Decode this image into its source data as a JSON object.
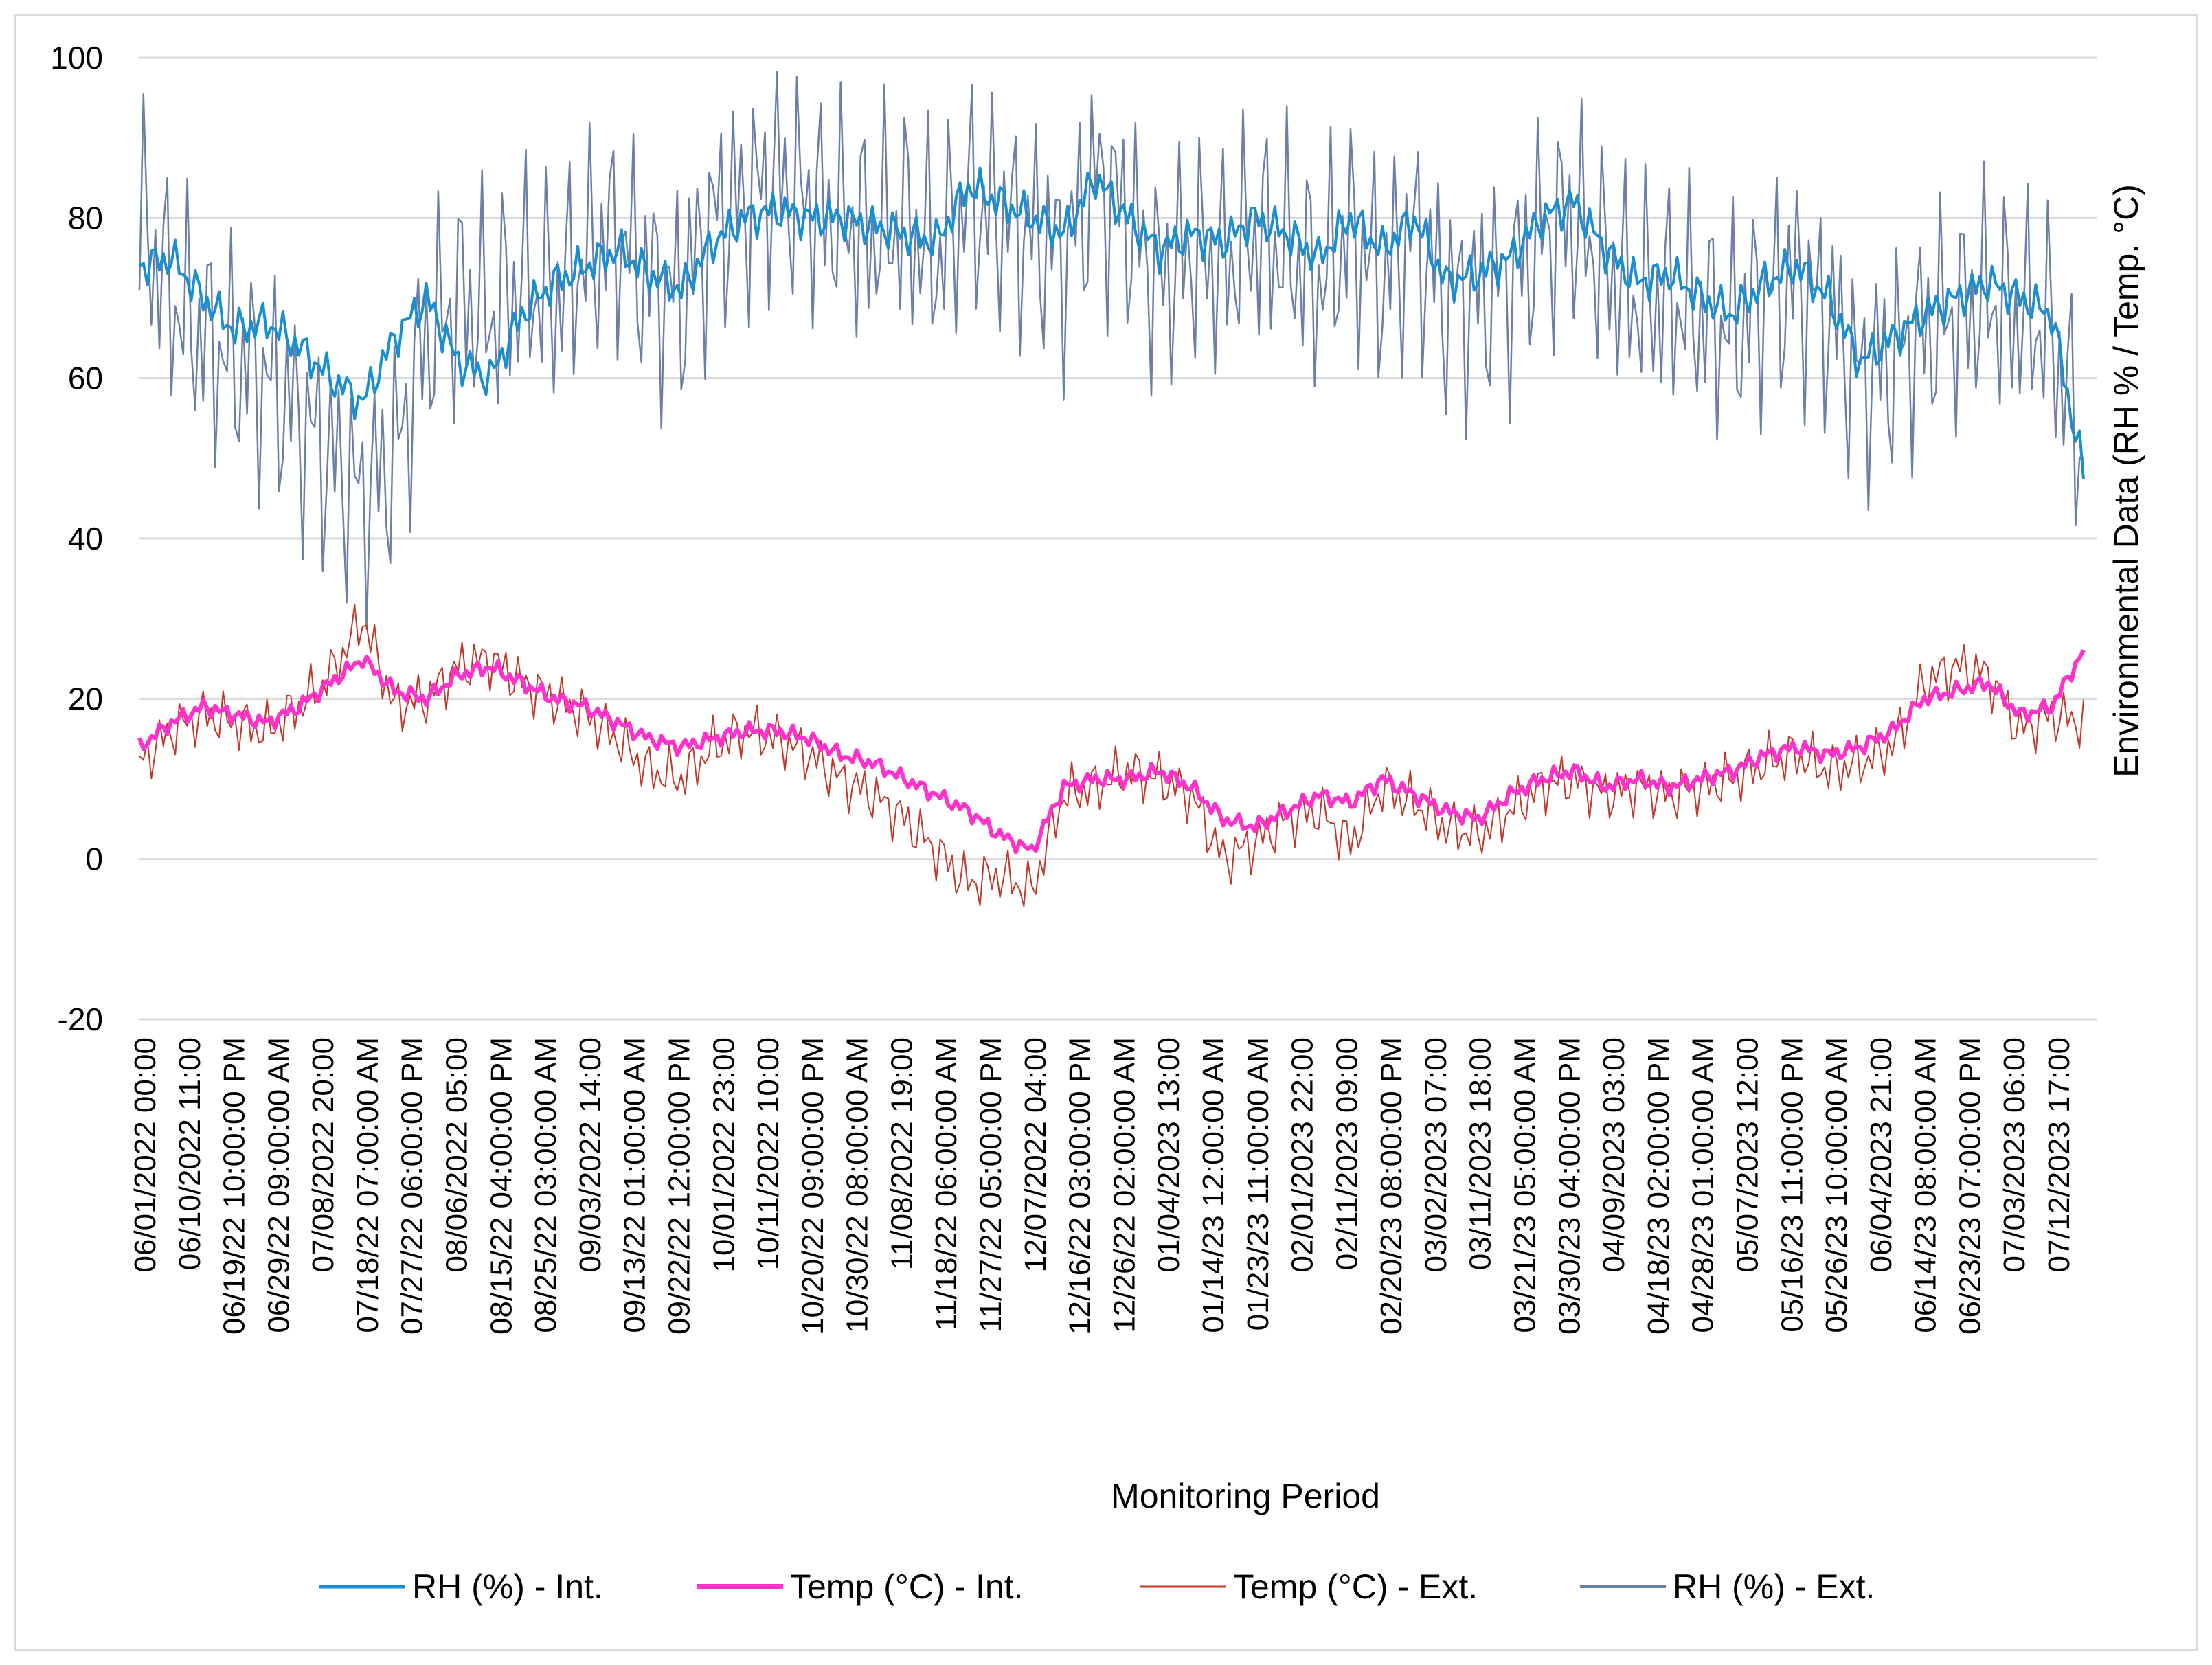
{
  "chart_data": {
    "type": "line",
    "title": "",
    "xlabel": "Monitoring Period",
    "ylabel": "Environmental Data (RH % / Temp. °C)",
    "ylim": [
      -20,
      100
    ],
    "yticks": [
      -20,
      0,
      20,
      40,
      60,
      80,
      100
    ],
    "grid": true,
    "legend_position": "bottom",
    "x_tick_labels": [
      "06/01/2022 00:00",
      "06/10/2022 11:00",
      "06/19/22 10:00:00 PM",
      "06/29/22 09:00:00 AM",
      "07/08/2022 20:00",
      "07/18/22 07:00:00 AM",
      "07/27/22 06:00:00 PM",
      "08/06/2022 05:00",
      "08/15/22 04:00:00 PM",
      "08/25/22 03:00:00 AM",
      "09/03/2022 14:00",
      "09/13/22 01:00:00 AM",
      "09/22/22 12:00:00 PM",
      "10/01/2022 23:00",
      "10/11/2022 10:00",
      "10/20/22 09:00:00 PM",
      "10/30/22 08:00:00 AM",
      "11/08/2022 19:00",
      "11/18/22 06:00:00 AM",
      "11/27/22 05:00:00 PM",
      "12/07/2022 04:00",
      "12/16/22 03:00:00 PM",
      "12/26/22 02:00:00 AM",
      "01/04/2023 13:00",
      "01/14/23 12:00:00 AM",
      "01/23/23 11:00:00 AM",
      "02/01/2023 22:00",
      "02/11/2023 09:00",
      "02/20/23 08:00:00 PM",
      "03/02/2023 07:00",
      "03/11/2023 18:00",
      "03/21/23 05:00:00 AM",
      "03/30/23 04:00:00 PM",
      "04/09/2023 03:00",
      "04/18/23 02:00:00 PM",
      "04/28/23 01:00:00 AM",
      "05/07/2023 12:00",
      "05/16/23 11:00:00 PM",
      "05/26/23 10:00:00 AM",
      "06/04/2023 21:00",
      "06/14/23 08:00:00 AM",
      "06/23/23 07:00:00 PM",
      "07/03/2023 06:00",
      "07/12/2023 17:00"
    ],
    "series": [
      {
        "name": "RH (%) - Int.",
        "color": "#1a8fd0",
        "values": [
          74,
          75,
          70,
          66,
          67,
          64,
          60,
          57,
          65,
          70,
          62,
          60,
          68,
          72,
          74,
          76,
          73,
          71,
          77,
          80,
          81,
          80,
          80,
          79,
          78,
          77,
          84,
          82,
          80,
          78,
          85,
          80,
          76,
          78,
          77,
          80,
          78,
          75,
          80,
          76,
          80,
          72,
          73,
          75,
          80,
          82,
          76,
          72,
          73,
          70,
          68,
          72,
          74,
          70,
          62,
          65,
          68,
          70,
          72,
          70,
          68,
          48
        ]
      },
      {
        "name": "Temp (°C) - Int.",
        "color": "#ff33cc",
        "values": [
          14,
          17,
          19,
          18,
          17,
          19,
          22,
          25,
          21,
          20,
          23,
          24,
          22,
          20,
          19,
          17,
          15,
          14,
          15,
          16,
          16,
          15,
          13,
          12,
          10,
          8,
          6,
          3,
          1,
          9,
          10,
          10,
          11,
          9,
          5,
          4,
          6,
          8,
          7,
          10,
          8,
          6,
          5,
          8,
          10,
          11,
          9,
          10,
          9,
          10,
          11,
          13,
          14,
          13,
          14,
          16,
          20,
          21,
          22,
          18,
          19,
          26
        ]
      },
      {
        "name": "Temp (°C) - Ext.",
        "color": "#c0392b",
        "values": [
          12,
          16,
          18,
          17,
          16,
          19,
          23,
          30,
          19,
          20,
          24,
          25,
          22,
          20,
          18,
          15,
          11,
          10,
          14,
          16,
          15,
          13,
          10,
          8,
          5,
          1,
          -3,
          -2,
          -4,
          8,
          9,
          11,
          10,
          8,
          0,
          2,
          5,
          6,
          2,
          9,
          7,
          4,
          3,
          6,
          9,
          10,
          8,
          9,
          8,
          9,
          10,
          12,
          13,
          11,
          12,
          14,
          22,
          24,
          23,
          16,
          18,
          17
        ]
      },
      {
        "name": "RH (%) - Ext.",
        "color": "#6b7fa8",
        "values": [
          80,
          70,
          65,
          62,
          60,
          55,
          50,
          45,
          50,
          65,
          70,
          68,
          72,
          70,
          75,
          78,
          72,
          70,
          80,
          82,
          85,
          82,
          80,
          78,
          80,
          75,
          82,
          80,
          78,
          75,
          85,
          80,
          72,
          76,
          74,
          78,
          76,
          72,
          78,
          72,
          78,
          70,
          70,
          72,
          78,
          80,
          74,
          70,
          70,
          68,
          66,
          70,
          72,
          68,
          60,
          62,
          66,
          68,
          70,
          68,
          66,
          50
        ]
      }
    ],
    "series_notes": "Values are approximate smoothed readings sampled at evenly spaced points across the monitoring period (06/01/2022 to ~07/20/2023); external series show strong short-term oscillation."
  }
}
